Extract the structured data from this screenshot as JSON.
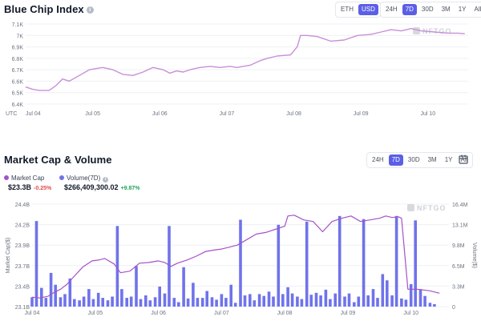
{
  "colors": {
    "accent": "#5b5fe6",
    "line": "#c98fd8",
    "line2": "#a452c8",
    "bar": "#6f73ea",
    "neg": "#e24a4a",
    "pos": "#22a35a"
  },
  "blue_chip": {
    "title": "Blue Chip Index",
    "currency_options": [
      "ETH",
      "USD"
    ],
    "currency_selected": "USD",
    "range_options": [
      "24H",
      "7D",
      "30D",
      "3M",
      "1Y",
      "All"
    ],
    "range_selected": "7D",
    "utc_label": "UTC",
    "watermark": "NFTGO"
  },
  "market_cap": {
    "title": "Market Cap & Volume",
    "range_options": [
      "24H",
      "7D",
      "30D",
      "3M",
      "1Y",
      "All"
    ],
    "range_selected": "7D",
    "legend_cap_label": "Market Cap",
    "legend_vol_label": "Volume(7D)",
    "cap_value": "$23.3B",
    "cap_change": "-0.25%",
    "vol_value": "$266,409,300.02",
    "vol_change": "+9.87%",
    "left_axis_title": "Market Cap($)",
    "right_axis_title": "Volume($)",
    "watermark": "NFTGO",
    "calendar_icon": "calendar-icon"
  },
  "chart_data": [
    {
      "type": "line",
      "name": "blue-chip-index",
      "x_ticks": [
        "Jul 04",
        "Jul 05",
        "Jul 06",
        "Jul 07",
        "Jul 08",
        "Jul 09",
        "Jul 10"
      ],
      "y_ticks": [
        "6.4K",
        "6.5K",
        "6.6K",
        "6.7K",
        "6.8K",
        "6.9K",
        "7K",
        "7.1K"
      ],
      "ylim": [
        6400,
        7100
      ],
      "xlim": [
        0,
        6.6
      ],
      "grid": true,
      "series": [
        {
          "x": [
            0,
            0.1,
            0.2,
            0.35,
            0.45,
            0.55,
            0.65,
            0.8,
            0.95,
            1.05,
            1.15,
            1.3,
            1.45,
            1.6,
            1.75,
            1.9,
            2.05,
            2.15,
            2.25,
            2.35,
            2.45,
            2.6,
            2.75,
            2.9,
            3.05,
            3.15,
            3.35,
            3.5,
            3.6,
            3.75,
            3.95,
            4.05,
            4.1,
            4.2,
            4.35,
            4.55,
            4.75,
            4.95,
            5.15,
            5.3,
            5.45,
            5.6,
            5.75,
            5.9,
            6.1,
            6.3,
            6.45,
            6.55
          ],
          "y": [
            6550,
            6530,
            6520,
            6520,
            6560,
            6620,
            6600,
            6650,
            6700,
            6710,
            6720,
            6700,
            6660,
            6650,
            6680,
            6720,
            6700,
            6670,
            6690,
            6680,
            6700,
            6720,
            6730,
            6720,
            6730,
            6720,
            6740,
            6780,
            6800,
            6820,
            6830,
            6900,
            7000,
            7000,
            6990,
            6950,
            6960,
            7000,
            7010,
            7030,
            7050,
            7040,
            7060,
            7040,
            7030,
            7020,
            7020,
            7015
          ]
        }
      ]
    },
    {
      "type": "bar",
      "name": "market-cap-volume",
      "x_ticks": [
        "Jul 04",
        "Jul 05",
        "Jul 06",
        "Jul 07",
        "Jul 08",
        "Jul 09",
        "Jul 10"
      ],
      "y_ticks_left": [
        "23.1B",
        "23.4B",
        "23.7B",
        "23.9B",
        "24.2B",
        "24.4B"
      ],
      "y_ticks_right": [
        "0",
        "3.3M",
        "6.5M",
        "9.8M",
        "13.1M",
        "16.4M"
      ],
      "ylim_left": [
        23.1,
        24.4
      ],
      "ylim_right": [
        0,
        16.4
      ],
      "xlim": [
        0,
        6.6
      ],
      "grid": true,
      "volume_series": {
        "name": "Volume(7D)",
        "x": [
          0,
          0.07,
          0.15,
          0.22,
          0.3,
          0.37,
          0.45,
          0.52,
          0.6,
          0.67,
          0.75,
          0.82,
          0.9,
          0.97,
          1.05,
          1.12,
          1.2,
          1.27,
          1.35,
          1.42,
          1.5,
          1.57,
          1.65,
          1.72,
          1.8,
          1.87,
          1.95,
          2.02,
          2.1,
          2.17,
          2.25,
          2.32,
          2.4,
          2.47,
          2.55,
          2.62,
          2.7,
          2.77,
          2.85,
          2.92,
          3.0,
          3.07,
          3.15,
          3.22,
          3.3,
          3.37,
          3.45,
          3.52,
          3.6,
          3.67,
          3.75,
          3.82,
          3.9,
          3.97,
          4.05,
          4.12,
          4.2,
          4.27,
          4.35,
          4.42,
          4.5,
          4.57,
          4.65,
          4.72,
          4.8,
          4.87,
          4.95,
          5.02,
          5.1,
          5.17,
          5.25,
          5.32,
          5.4,
          5.47,
          5.55,
          5.62,
          5.7,
          5.77,
          5.85,
          5.92,
          6.0,
          6.07,
          6.15,
          6.22,
          6.3,
          6.37
        ],
        "values": [
          1.5,
          13.7,
          3.0,
          1.4,
          5.4,
          3.5,
          1.5,
          2.0,
          4.5,
          1.2,
          1.0,
          1.6,
          2.8,
          1.2,
          2.2,
          1.4,
          1.0,
          1.6,
          12.9,
          2.8,
          1.4,
          1.6,
          6.5,
          1.2,
          1.8,
          1.0,
          1.5,
          3.2,
          2.1,
          12.9,
          1.4,
          0.7,
          6.3,
          1.3,
          3.8,
          1.4,
          1.4,
          2.5,
          1.5,
          1.1,
          2.0,
          1.4,
          3.5,
          0.6,
          13.9,
          1.8,
          2.0,
          1.0,
          2.0,
          1.7,
          2.4,
          1.6,
          13.1,
          2.0,
          3.1,
          2.1,
          1.6,
          1.2,
          13.6,
          1.9,
          2.2,
          1.8,
          2.7,
          1.2,
          2.1,
          14.5,
          1.6,
          2.1,
          0.7,
          1.6,
          14.0,
          1.8,
          2.8,
          1.4,
          5.2,
          4.2,
          1.8,
          14.5,
          1.3,
          1.1,
          3.6,
          13.8,
          2.8,
          1.7,
          0.6,
          0.4
        ]
      },
      "cap_series": {
        "name": "Market Cap",
        "x": [
          0,
          0.12,
          0.25,
          0.35,
          0.45,
          0.55,
          0.65,
          0.8,
          0.95,
          1.05,
          1.15,
          1.3,
          1.4,
          1.55,
          1.7,
          1.85,
          2.0,
          2.1,
          2.2,
          2.3,
          2.45,
          2.6,
          2.75,
          2.9,
          3.0,
          3.1,
          3.25,
          3.4,
          3.55,
          3.7,
          3.85,
          4.0,
          4.05,
          4.15,
          4.3,
          4.45,
          4.6,
          4.75,
          4.9,
          5.05,
          5.2,
          5.35,
          5.5,
          5.6,
          5.7,
          5.8,
          5.85,
          5.95,
          6.1,
          6.3,
          6.45
        ],
        "values": [
          23.22,
          23.21,
          23.23,
          23.28,
          23.32,
          23.38,
          23.47,
          23.6,
          23.68,
          23.69,
          23.71,
          23.64,
          23.53,
          23.55,
          23.65,
          23.66,
          23.68,
          23.66,
          23.61,
          23.65,
          23.69,
          23.74,
          23.8,
          23.82,
          23.83,
          23.85,
          23.88,
          23.95,
          24.02,
          24.04,
          24.08,
          24.12,
          24.25,
          24.26,
          24.2,
          24.18,
          24.05,
          24.18,
          24.22,
          24.25,
          24.18,
          24.2,
          24.22,
          24.25,
          24.23,
          24.24,
          24.22,
          23.32,
          23.32,
          23.3,
          23.27
        ]
      }
    }
  ]
}
